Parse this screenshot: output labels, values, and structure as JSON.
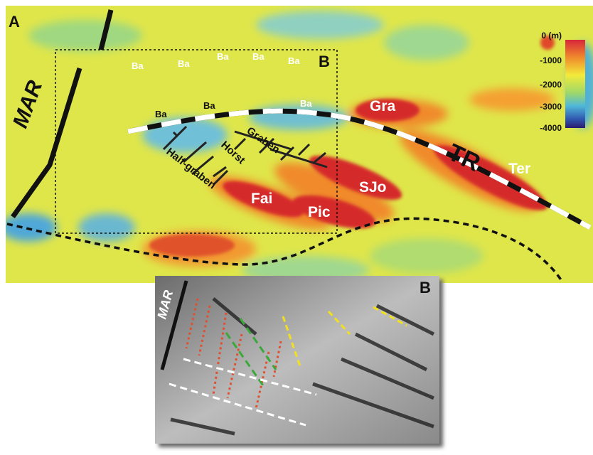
{
  "panel_a": {
    "label": "A",
    "inset_label": "B",
    "ridge": "MAR",
    "basins_top": [
      "Ba",
      "Ba",
      "Ba",
      "Ba",
      "Ba"
    ],
    "basins_mid": [
      "Ba",
      "Ba",
      "Ba"
    ],
    "highs": [
      "Gra",
      "Ter",
      "Fai",
      "Pic",
      "SJo"
    ],
    "fault_zone": "TR",
    "structures": [
      "Graben",
      "Horst",
      "Half-graben"
    ],
    "colorbar": [
      "0 (m)",
      "-1000",
      "-2000",
      "-3000",
      "-4000"
    ]
  },
  "panel_b": {
    "label": "B",
    "ridge": "MAR"
  }
}
